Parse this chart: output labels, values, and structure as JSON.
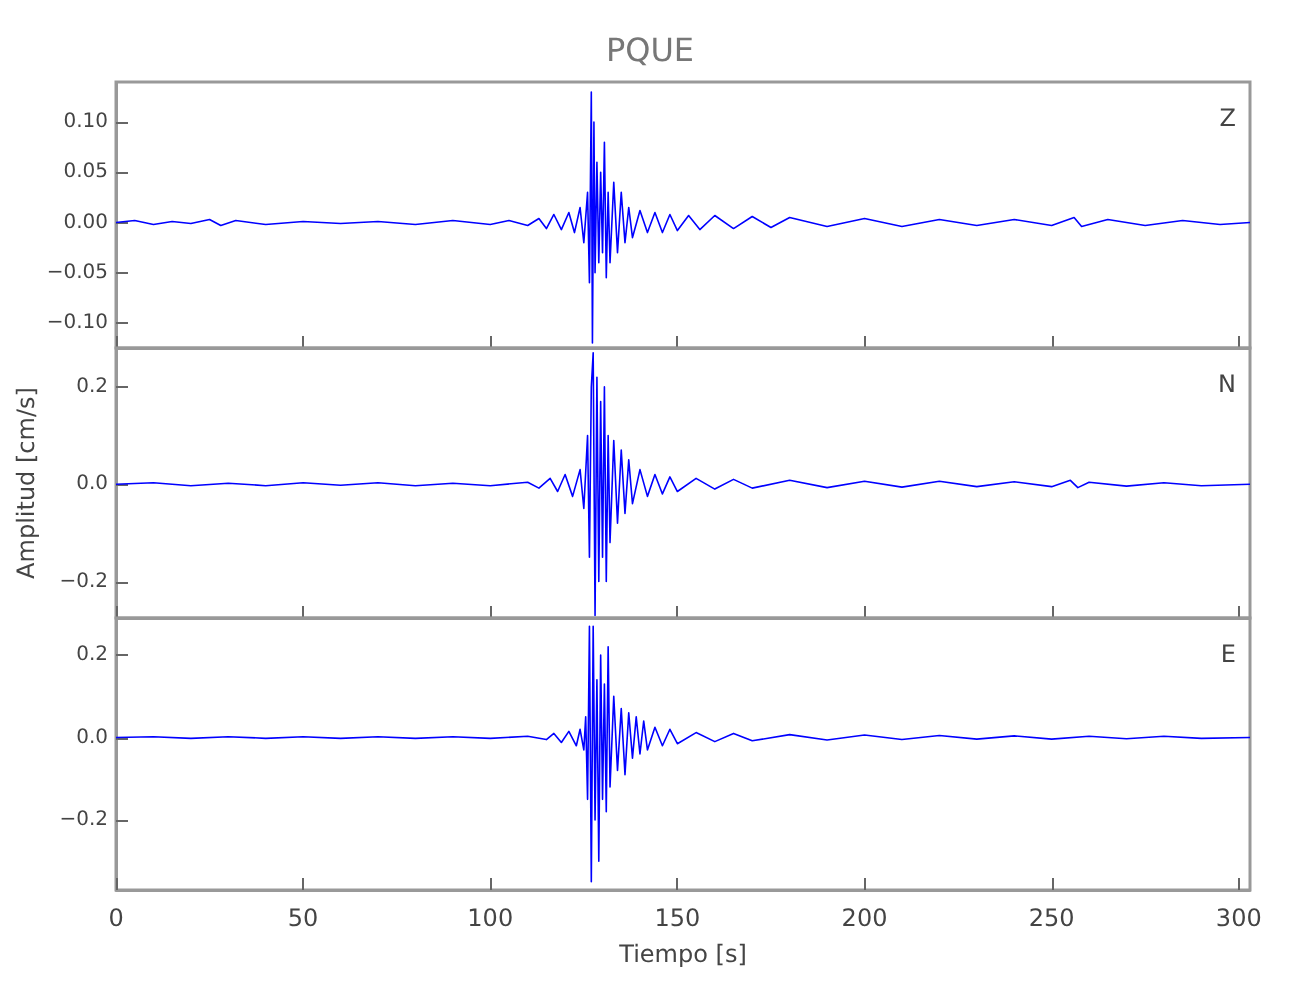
{
  "chart_data": [
    {
      "type": "line",
      "title": "PQUE",
      "annotations": [
        "Z"
      ],
      "xlim": [
        0,
        303
      ],
      "xticks": [
        0,
        50,
        100,
        150,
        200,
        250,
        300
      ],
      "ylim": [
        -0.125,
        0.14
      ],
      "yticks": [
        {
          "value": -0.1,
          "label": "−0.10"
        },
        {
          "value": -0.05,
          "label": "−0.05"
        },
        {
          "value": 0,
          "label": "0.00"
        },
        {
          "value": 0.05,
          "label": "0.05"
        },
        {
          "value": 0.1,
          "label": "0.10"
        }
      ],
      "tick_labels": "y",
      "grid": false,
      "series": [
        {
          "color": "#0000ff",
          "x": [
            0,
            5,
            10,
            15,
            20,
            25,
            28,
            32,
            40,
            50,
            60,
            70,
            80,
            90,
            100,
            105,
            110,
            113,
            115,
            117,
            119,
            121,
            122.5,
            124,
            125,
            126,
            126.5,
            127,
            127.3,
            127.7,
            128,
            128.5,
            129,
            129.5,
            130,
            130.5,
            131,
            131.5,
            132,
            133,
            134,
            135,
            136,
            137,
            138,
            140,
            142,
            144,
            146,
            148,
            150,
            153,
            156,
            160,
            165,
            170,
            175,
            180,
            190,
            200,
            210,
            220,
            230,
            240,
            250,
            256,
            258,
            265,
            275,
            285,
            295,
            303
          ],
          "values": [
            0,
            0.002,
            -0.002,
            0.001,
            -0.001,
            0.003,
            -0.003,
            0.002,
            -0.002,
            0.001,
            -0.001,
            0.001,
            -0.002,
            0.002,
            -0.002,
            0.002,
            -0.003,
            0.004,
            -0.006,
            0.008,
            -0.007,
            0.01,
            -0.01,
            0.015,
            -0.02,
            0.03,
            -0.06,
            0.13,
            -0.12,
            0.1,
            -0.05,
            0.06,
            -0.04,
            0.05,
            -0.03,
            0.08,
            -0.055,
            0.03,
            -0.04,
            0.04,
            -0.03,
            0.03,
            -0.02,
            0.015,
            -0.015,
            0.012,
            -0.01,
            0.01,
            -0.01,
            0.008,
            -0.008,
            0.007,
            -0.007,
            0.007,
            -0.006,
            0.006,
            -0.005,
            0.005,
            -0.004,
            0.004,
            -0.004,
            0.003,
            -0.003,
            0.003,
            -0.003,
            0.005,
            -0.004,
            0.003,
            -0.003,
            0.002,
            -0.002,
            0
          ]
        }
      ]
    },
    {
      "type": "line",
      "ylabel": "Amplitud [cm/s]",
      "annotations": [
        "N"
      ],
      "xlim": [
        0,
        303
      ],
      "xticks": [
        0,
        50,
        100,
        150,
        200,
        250,
        300
      ],
      "ylim": [
        -0.275,
        0.28
      ],
      "yticks": [
        {
          "value": -0.2,
          "label": "−0.2"
        },
        {
          "value": 0,
          "label": "0.0"
        },
        0.2
      ],
      "tick_labels": "y",
      "grid": false,
      "series": [
        {
          "color": "#0000ff",
          "x": [
            0,
            10,
            20,
            30,
            40,
            50,
            60,
            70,
            80,
            90,
            100,
            110,
            113,
            116,
            118,
            120,
            122,
            124,
            125,
            126,
            126.5,
            127,
            127.5,
            128,
            128.5,
            129,
            129.5,
            130,
            130.5,
            131,
            131.5,
            132,
            133,
            134,
            135,
            136,
            137,
            138,
            140,
            142,
            144,
            146,
            148,
            150,
            155,
            160,
            165,
            170,
            180,
            190,
            200,
            210,
            220,
            230,
            240,
            250,
            255,
            257,
            260,
            270,
            280,
            290,
            303
          ],
          "values": [
            0,
            0.003,
            -0.003,
            0.002,
            -0.003,
            0.003,
            -0.002,
            0.003,
            -0.003,
            0.002,
            -0.003,
            0.004,
            -0.008,
            0.012,
            -0.015,
            0.02,
            -0.025,
            0.03,
            -0.05,
            0.1,
            -0.15,
            0.2,
            0.27,
            -0.27,
            0.22,
            -0.2,
            0.17,
            -0.15,
            0.2,
            -0.2,
            0.1,
            -0.12,
            0.09,
            -0.08,
            0.07,
            -0.06,
            0.05,
            -0.04,
            0.03,
            -0.025,
            0.02,
            -0.02,
            0.015,
            -0.015,
            0.012,
            -0.01,
            0.01,
            -0.008,
            0.008,
            -0.007,
            0.006,
            -0.006,
            0.006,
            -0.005,
            0.005,
            -0.005,
            0.008,
            -0.007,
            0.004,
            -0.004,
            0.003,
            -0.003,
            0
          ]
        }
      ]
    },
    {
      "type": "line",
      "xlabel": "Tiempo [s]",
      "annotations": [
        "E"
      ],
      "xlim": [
        0,
        303
      ],
      "xticks": [
        0,
        50,
        100,
        150,
        200,
        250,
        300
      ],
      "ylim": [
        -0.37,
        0.29
      ],
      "yticks": [
        {
          "value": -0.2,
          "label": "−0.2"
        },
        {
          "value": 0,
          "label": "0.0"
        },
        0.2
      ],
      "grid": false,
      "series": [
        {
          "color": "#0000ff",
          "x": [
            0,
            10,
            20,
            30,
            40,
            50,
            60,
            70,
            80,
            90,
            100,
            110,
            115,
            117,
            119,
            121,
            123,
            124,
            125,
            125.5,
            126,
            126.5,
            127,
            127.5,
            128,
            128.5,
            129,
            129.5,
            130,
            130.5,
            131,
            131.5,
            132,
            133,
            134,
            135,
            136,
            137,
            138,
            139,
            140,
            141,
            142,
            144,
            146,
            148,
            150,
            155,
            160,
            165,
            170,
            180,
            190,
            200,
            210,
            220,
            230,
            240,
            250,
            260,
            270,
            280,
            290,
            303
          ],
          "values": [
            0,
            0.002,
            -0.002,
            0.002,
            -0.002,
            0.002,
            -0.002,
            0.002,
            -0.002,
            0.002,
            -0.002,
            0.003,
            -0.005,
            0.01,
            -0.012,
            0.015,
            -0.02,
            0.02,
            -0.03,
            0.05,
            -0.15,
            0.27,
            -0.35,
            0.27,
            -0.2,
            0.14,
            -0.3,
            0.2,
            -0.15,
            0.13,
            -0.18,
            0.22,
            -0.12,
            0.1,
            -0.08,
            0.07,
            -0.09,
            0.06,
            -0.05,
            0.05,
            -0.04,
            0.04,
            -0.03,
            0.025,
            -0.02,
            0.02,
            -0.015,
            0.012,
            -0.01,
            0.01,
            -0.008,
            0.007,
            -0.006,
            0.006,
            -0.005,
            0.005,
            -0.004,
            0.004,
            -0.004,
            0.003,
            -0.003,
            0.003,
            -0.002,
            0
          ]
        }
      ]
    }
  ]
}
